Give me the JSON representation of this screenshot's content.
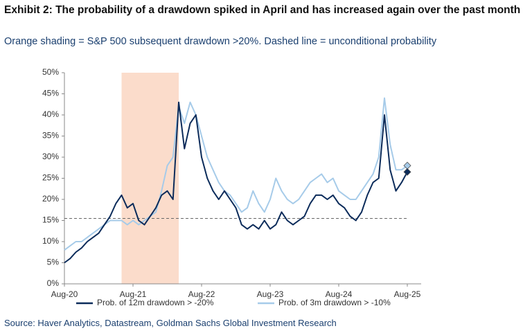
{
  "chart_data": {
    "type": "line",
    "title": "Exhibit 2: The probability of a drawdown spiked in April and has increased again over the past month",
    "subtitle": "Orange shading = S&P 500 subsequent drawdown >20%. Dashed line = unconditional probability",
    "source": "Source: Haver Analytics, Datastream, Goldman Sachs Global Investment Research",
    "x": [
      "2020-08",
      "2020-09",
      "2020-10",
      "2020-11",
      "2020-12",
      "2021-01",
      "2021-02",
      "2021-03",
      "2021-04",
      "2021-05",
      "2021-06",
      "2021-07",
      "2021-08",
      "2021-09",
      "2021-10",
      "2021-11",
      "2021-12",
      "2022-01",
      "2022-02",
      "2022-03",
      "2022-04",
      "2022-05",
      "2022-06",
      "2022-07",
      "2022-08",
      "2022-09",
      "2022-10",
      "2022-11",
      "2022-12",
      "2023-01",
      "2023-02",
      "2023-03",
      "2023-04",
      "2023-05",
      "2023-06",
      "2023-07",
      "2023-08",
      "2023-09",
      "2023-10",
      "2023-11",
      "2023-12",
      "2024-01",
      "2024-02",
      "2024-03",
      "2024-04",
      "2024-05",
      "2024-06",
      "2024-07",
      "2024-08",
      "2024-09",
      "2024-10",
      "2024-11",
      "2024-12",
      "2025-01",
      "2025-02",
      "2025-03",
      "2025-04",
      "2025-05",
      "2025-06",
      "2025-07",
      "2025-08"
    ],
    "series": [
      {
        "name": "Prob. of 12m drawdown > -20%",
        "color": "#0b2b5a",
        "values": [
          5,
          6,
          7.5,
          8.5,
          10,
          11,
          12,
          14,
          16,
          19,
          21,
          18,
          19,
          15,
          14,
          16,
          18,
          21,
          22,
          20,
          43,
          32,
          38,
          40,
          30,
          25,
          22,
          20,
          22,
          20,
          18,
          14,
          13,
          14,
          13,
          15,
          13,
          14,
          17,
          15,
          14,
          15,
          16,
          19,
          21,
          21,
          20,
          21,
          19,
          18,
          16,
          15,
          17,
          21,
          24,
          25,
          40,
          27,
          22,
          24,
          26.5
        ]
      },
      {
        "name": "Prob. of 3m drawdown > -10%",
        "color": "#a6cbe9",
        "values": [
          8,
          9,
          10,
          10,
          11,
          12,
          13,
          14,
          15,
          15,
          15,
          14,
          15,
          14,
          15,
          16,
          17,
          22,
          28,
          30,
          42,
          38,
          43,
          40,
          35,
          30,
          27,
          24,
          22,
          21,
          19,
          17,
          18,
          22,
          19,
          17,
          20,
          25,
          22,
          20,
          19,
          20,
          22,
          24,
          25,
          26,
          24,
          25,
          22,
          21,
          20,
          20,
          22,
          24,
          26,
          30,
          44,
          33,
          27,
          27,
          28
        ]
      }
    ],
    "xticks": [
      {
        "value": "2020-08",
        "label": "Aug-20"
      },
      {
        "value": "2021-08",
        "label": "Aug-21"
      },
      {
        "value": "2022-08",
        "label": "Aug-22"
      },
      {
        "value": "2023-08",
        "label": "Aug-23"
      },
      {
        "value": "2024-08",
        "label": "Aug-24"
      },
      {
        "value": "2025-08",
        "label": "Aug-25"
      }
    ],
    "ylim": [
      0,
      50
    ],
    "yticks": [
      {
        "value": 0,
        "label": "0%"
      },
      {
        "value": 5,
        "label": "5%"
      },
      {
        "value": 10,
        "label": "10%"
      },
      {
        "value": 15,
        "label": "15%"
      },
      {
        "value": 20,
        "label": "20%"
      },
      {
        "value": 25,
        "label": "25%"
      },
      {
        "value": 30,
        "label": "30%"
      },
      {
        "value": 35,
        "label": "35%"
      },
      {
        "value": 40,
        "label": "40%"
      },
      {
        "value": 45,
        "label": "45%"
      },
      {
        "value": 50,
        "label": "50%"
      }
    ],
    "shaded_regions": [
      {
        "start": "2021-06",
        "end": "2022-04",
        "color": "#fbdccb"
      }
    ],
    "reference_line": {
      "value": 15.5,
      "color": "#666666",
      "style": "dashed"
    },
    "end_marker": "diamond",
    "legend": "bottom",
    "grid": false
  }
}
